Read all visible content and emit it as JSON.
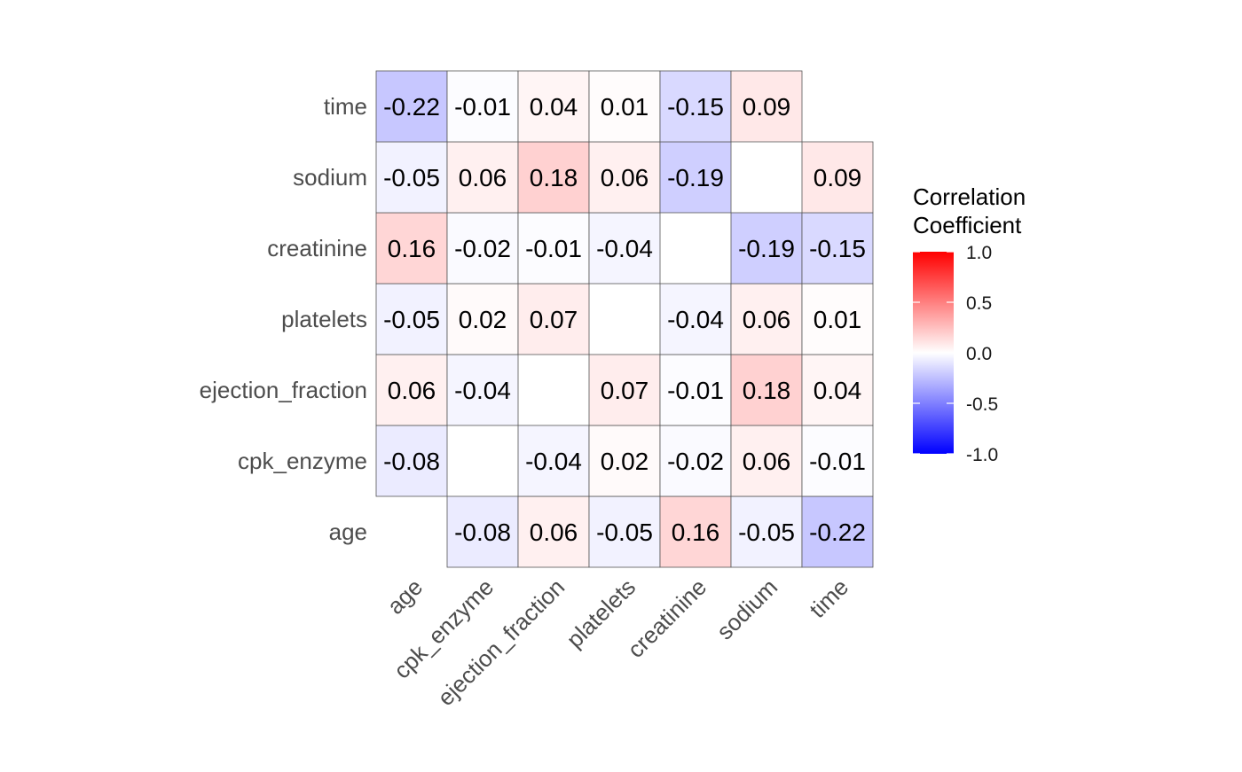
{
  "chart_data": {
    "type": "heatmap",
    "variables": [
      "age",
      "cpk_enzyme",
      "ejection_fraction",
      "platelets",
      "creatinine",
      "sodium",
      "time"
    ],
    "x_labels": [
      "age",
      "cpk_enzyme",
      "ejection_fraction",
      "platelets",
      "creatinine",
      "sodium",
      "time"
    ],
    "y_labels": [
      "age",
      "cpk_enzyme",
      "ejection_fraction",
      "platelets",
      "creatinine",
      "sodium",
      "time"
    ],
    "matrix": [
      [
        null,
        -0.08,
        0.06,
        -0.05,
        0.16,
        -0.05,
        -0.22
      ],
      [
        -0.08,
        null,
        -0.04,
        0.02,
        -0.02,
        0.06,
        -0.01
      ],
      [
        0.06,
        -0.04,
        null,
        0.07,
        -0.01,
        0.18,
        0.04
      ],
      [
        -0.05,
        0.02,
        0.07,
        null,
        -0.04,
        0.06,
        0.01
      ],
      [
        0.16,
        -0.02,
        -0.01,
        -0.04,
        null,
        -0.19,
        -0.15
      ],
      [
        -0.05,
        0.06,
        0.18,
        0.06,
        -0.19,
        null,
        0.09
      ],
      [
        -0.22,
        -0.01,
        0.04,
        0.01,
        -0.15,
        0.09,
        null
      ]
    ],
    "legend": {
      "title_lines": [
        "Correlation",
        "Coefficient"
      ],
      "range": [
        -1.0,
        1.0
      ],
      "ticks": [
        1.0,
        0.5,
        0.0,
        -0.5,
        -1.0
      ],
      "tick_labels": [
        "1.0",
        "0.5",
        "0.0",
        "-0.5",
        "-1.0"
      ],
      "low_color": "#0000ff",
      "mid_color": "#ffffff",
      "high_color": "#ff0000"
    },
    "cell_border_color": "#555555",
    "value_format_decimals": 2
  }
}
